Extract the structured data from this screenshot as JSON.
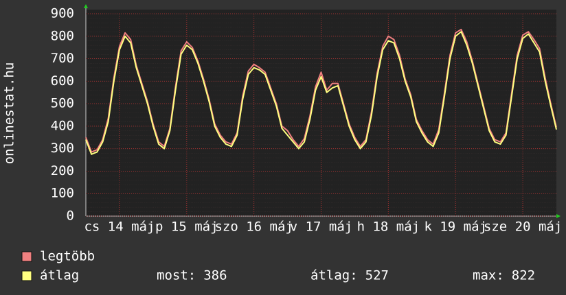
{
  "chart_data": {
    "type": "line",
    "title": "onlinestat.hu",
    "xlim": [
      0,
      168
    ],
    "ylim": [
      0,
      900
    ],
    "yticks": [
      0,
      100,
      200,
      300,
      400,
      500,
      600,
      700,
      800,
      900
    ],
    "xticks": [
      {
        "value": 12,
        "label": "cs 14 máj"
      },
      {
        "value": 36,
        "label": "p 15 máj"
      },
      {
        "value": 60,
        "label": "szo 16 máj"
      },
      {
        "value": 84,
        "label": "v 17 máj"
      },
      {
        "value": 108,
        "label": "h 18 máj"
      },
      {
        "value": 132,
        "label": "k 19 máj"
      },
      {
        "value": 156,
        "label": "sze 20 máj"
      }
    ],
    "grid": true,
    "x": [
      0,
      2,
      4,
      6,
      8,
      10,
      12,
      14,
      16,
      18,
      20,
      22,
      24,
      26,
      28,
      30,
      32,
      34,
      36,
      38,
      40,
      42,
      44,
      46,
      48,
      50,
      52,
      54,
      56,
      58,
      60,
      62,
      64,
      66,
      68,
      70,
      72,
      74,
      76,
      78,
      80,
      82,
      84,
      86,
      88,
      90,
      92,
      94,
      96,
      98,
      100,
      102,
      104,
      106,
      108,
      110,
      112,
      114,
      116,
      118,
      120,
      122,
      124,
      126,
      128,
      130,
      132,
      134,
      136,
      138,
      140,
      142,
      144,
      146,
      148,
      150,
      152,
      154,
      156,
      158,
      160,
      162,
      164,
      166,
      168
    ],
    "series": [
      {
        "name": "legtöbb",
        "color": "#f08080",
        "values": [
          350,
          285,
          295,
          340,
          435,
          615,
          755,
          815,
          785,
          670,
          590,
          510,
          410,
          330,
          310,
          390,
          575,
          735,
          775,
          750,
          690,
          610,
          520,
          410,
          360,
          330,
          320,
          370,
          535,
          645,
          675,
          660,
          640,
          570,
          500,
          400,
          380,
          340,
          310,
          345,
          445,
          575,
          640,
          560,
          590,
          590,
          500,
          410,
          350,
          310,
          340,
          465,
          635,
          755,
          800,
          785,
          715,
          610,
          540,
          430,
          380,
          340,
          320,
          385,
          545,
          715,
          815,
          830,
          775,
          690,
          590,
          490,
          390,
          340,
          330,
          370,
          545,
          715,
          805,
          820,
          785,
          745,
          615,
          500,
          395
        ]
      },
      {
        "name": "átlag",
        "color": "#ffff80",
        "values": [
          340,
          275,
          285,
          330,
          420,
          600,
          740,
          800,
          770,
          660,
          580,
          500,
          400,
          320,
          300,
          380,
          560,
          720,
          760,
          740,
          680,
          600,
          510,
          400,
          350,
          320,
          310,
          360,
          520,
          630,
          660,
          650,
          630,
          560,
          490,
          390,
          360,
          330,
          300,
          330,
          430,
          560,
          620,
          550,
          570,
          580,
          490,
          400,
          340,
          300,
          330,
          450,
          620,
          740,
          780,
          770,
          700,
          600,
          530,
          420,
          370,
          330,
          310,
          370,
          530,
          700,
          800,
          820,
          760,
          680,
          580,
          480,
          380,
          330,
          320,
          360,
          530,
          700,
          790,
          810,
          770,
          730,
          600,
          490,
          385
        ]
      }
    ],
    "stats": [
      {
        "label": "most:",
        "value": 386
      },
      {
        "label": "átlag:",
        "value": 527
      },
      {
        "label": "max:",
        "value": 822
      }
    ]
  }
}
